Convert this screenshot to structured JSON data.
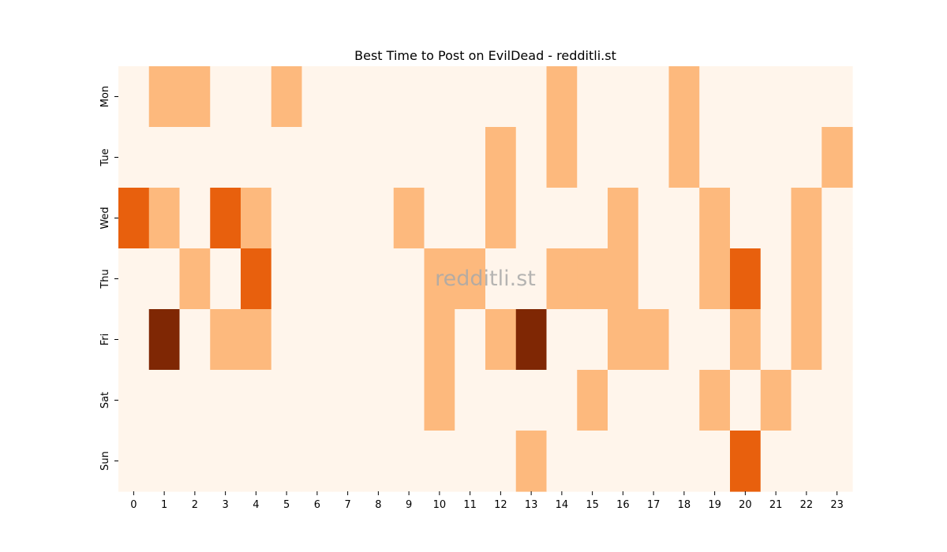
{
  "chart_data": {
    "type": "heatmap",
    "title": "Best Time to Post on EvilDead - redditli.st",
    "watermark": "redditli.st",
    "x_tick_labels": [
      "0",
      "1",
      "2",
      "3",
      "4",
      "5",
      "6",
      "7",
      "8",
      "9",
      "10",
      "11",
      "12",
      "13",
      "14",
      "15",
      "16",
      "17",
      "18",
      "19",
      "20",
      "21",
      "22",
      "23"
    ],
    "y_tick_labels": [
      "Mon",
      "Tue",
      "Wed",
      "Thu",
      "Fri",
      "Sat",
      "Sun"
    ],
    "xlabel": "",
    "ylabel": "",
    "colorscale": [
      "#fff5eb",
      "#fdb97d",
      "#e8600d",
      "#7f2704"
    ],
    "values": [
      [
        0,
        1,
        1,
        0,
        0,
        1,
        0,
        0,
        0,
        0,
        0,
        0,
        0,
        0,
        1,
        0,
        0,
        0,
        1,
        0,
        0,
        0,
        0,
        0
      ],
      [
        0,
        0,
        0,
        0,
        0,
        0,
        0,
        0,
        0,
        0,
        0,
        0,
        1,
        0,
        1,
        0,
        0,
        0,
        1,
        0,
        0,
        0,
        0,
        1
      ],
      [
        2,
        1,
        0,
        2,
        1,
        0,
        0,
        0,
        0,
        1,
        0,
        0,
        1,
        0,
        0,
        0,
        1,
        0,
        0,
        1,
        0,
        0,
        1,
        0
      ],
      [
        0,
        0,
        1,
        0,
        2,
        0,
        0,
        0,
        0,
        0,
        1,
        1,
        0,
        0,
        1,
        1,
        1,
        0,
        0,
        1,
        2,
        0,
        1,
        0
      ],
      [
        0,
        3,
        0,
        1,
        1,
        0,
        0,
        0,
        0,
        0,
        1,
        0,
        1,
        3,
        0,
        0,
        1,
        1,
        0,
        0,
        1,
        0,
        1,
        0
      ],
      [
        0,
        0,
        0,
        0,
        0,
        0,
        0,
        0,
        0,
        0,
        1,
        0,
        0,
        0,
        0,
        1,
        0,
        0,
        0,
        1,
        0,
        1,
        0,
        0
      ],
      [
        0,
        0,
        0,
        0,
        0,
        0,
        0,
        0,
        0,
        0,
        0,
        0,
        0,
        1,
        0,
        0,
        0,
        0,
        0,
        0,
        2,
        0,
        0,
        0
      ]
    ]
  }
}
